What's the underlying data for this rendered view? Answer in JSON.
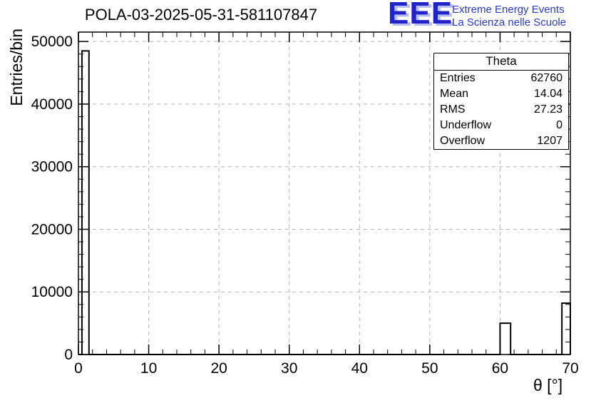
{
  "header": {
    "title": "POLA-03-2025-05-31-581107847",
    "logo": {
      "letters": "EEE",
      "line1": "Extreme Energy Events",
      "line2": "La Scienza nelle Scuole",
      "color": "#2024c8",
      "shadow_color": "#b6bdf0"
    }
  },
  "chart_data": {
    "type": "bar",
    "title": "POLA-03-2025-05-31-581107847",
    "xlabel": "θ [°]",
    "ylabel": "Entries/bin",
    "xlim": [
      0,
      70
    ],
    "ylim": [
      0,
      51500
    ],
    "x_ticks": [
      0,
      10,
      20,
      30,
      40,
      50,
      60,
      70
    ],
    "y_ticks": [
      0,
      10000,
      20000,
      30000,
      40000,
      50000
    ],
    "x_minor_step": 2,
    "y_minor_step": 2000,
    "grid": true,
    "grid_color": "#b3b3b3",
    "axis_color": "#000000",
    "bins": [
      {
        "x0": 0.5,
        "x1": 1.5,
        "count": 48500
      },
      {
        "x0": 60.0,
        "x1": 61.5,
        "count": 5000
      },
      {
        "x0": 68.8,
        "x1": 70.0,
        "count": 8200
      }
    ],
    "stats": {
      "title": "Theta",
      "rows": [
        {
          "label": "Entries",
          "value": "62760"
        },
        {
          "label": "Mean",
          "value": "14.04"
        },
        {
          "label": "RMS",
          "value": "27.23"
        },
        {
          "label": "Underflow",
          "value": "0"
        },
        {
          "label": "Overflow",
          "value": "1207"
        }
      ]
    }
  }
}
